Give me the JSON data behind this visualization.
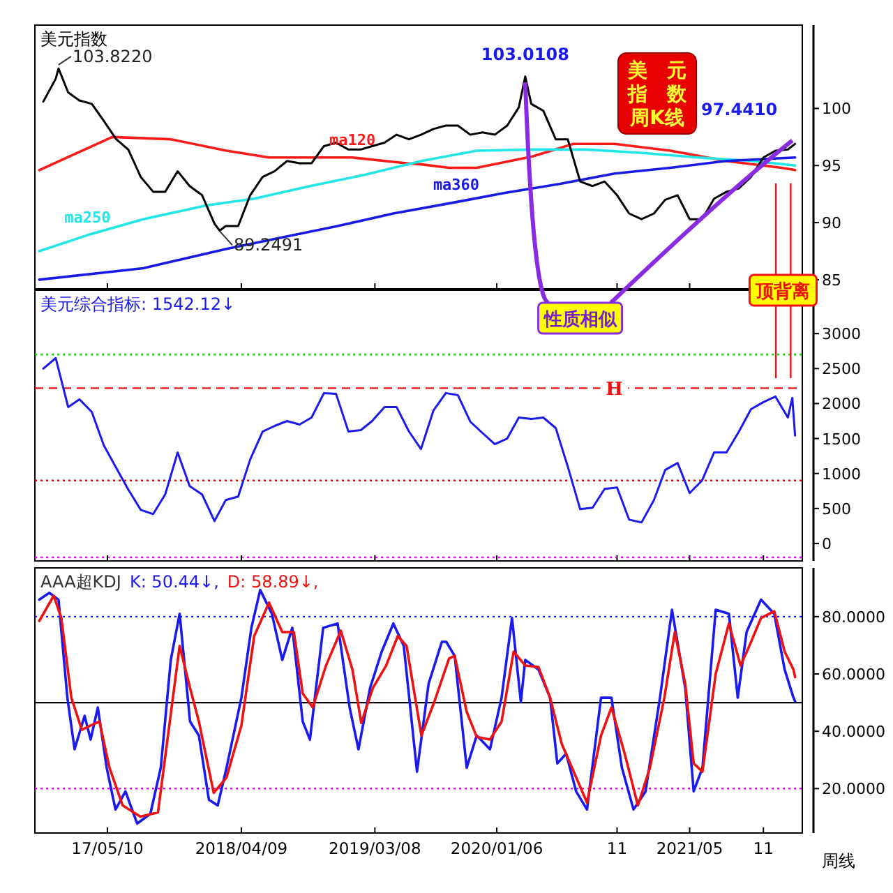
{
  "chart_data": [
    {
      "type": "line",
      "title": "美元指数",
      "xlim": [
        "2016-11-10",
        "2022-02-06"
      ],
      "ylim": [
        84.2,
        107.3
      ],
      "yticks": [
        85,
        90,
        95,
        100
      ],
      "tick_labels": "y",
      "legend": false,
      "marker": "none",
      "line_style": "solid",
      "series": [
        {
          "name": "ma120",
          "color": "#ff1a1a",
          "x": [
            "2016-11-21",
            "2017-05-22",
            "2017-10-15",
            "2018-03-03",
            "2018-06-17",
            "2019-01-11",
            "2019-05-26",
            "2019-07-02",
            "2019-09-09",
            "2019-11-17",
            "2020-04-04",
            "2020-07-15",
            "2020-10-26",
            "2021-03-14",
            "2021-07-31",
            "2021-12-16",
            "2022-01-19"
          ],
          "values": [
            94.6,
            97.5,
            97.3,
            96.3,
            95.7,
            95.7,
            95.2,
            95.1,
            94.8,
            94.8,
            95.8,
            96.9,
            96.9,
            96.3,
            95.4,
            94.8,
            94.6
          ]
        },
        {
          "name": "ma250",
          "color": "#22e5e5",
          "x": [
            "2016-11-21",
            "2017-03-21",
            "2017-08-07",
            "2018-01-11",
            "2018-05-11",
            "2018-09-27",
            "2019-02-13",
            "2019-07-02",
            "2019-11-17",
            "2020-04-04",
            "2020-08-18",
            "2021-01-04",
            "2021-05-22",
            "2021-10-08",
            "2022-01-19"
          ],
          "values": [
            87.5,
            88.9,
            90.3,
            91.5,
            92.1,
            93.2,
            94.2,
            95.4,
            96.3,
            96.4,
            96.4,
            96.1,
            95.7,
            95.4,
            95.0
          ]
        },
        {
          "name": "ma360",
          "color": "#1a1ae6",
          "x": [
            "2016-11-21",
            "2017-08-07",
            "2018-03-03",
            "2018-07-20",
            "2018-12-05",
            "2019-04-23",
            "2019-09-27",
            "2020-01-26",
            "2020-06-12",
            "2020-10-26",
            "2021-03-14",
            "2021-07-31",
            "2022-01-19"
          ],
          "values": [
            85.0,
            86.0,
            87.7,
            88.7,
            89.7,
            90.8,
            91.8,
            92.6,
            93.4,
            94.3,
            94.8,
            95.4,
            95.7
          ]
        },
        {
          "color": "#000000",
          "x": [
            "2016-12",
            "2017-01",
            "2017-01-08",
            "2017-02",
            "2017-03",
            "2017-04",
            "2017-05",
            "2017-06",
            "2017-07",
            "2017-08",
            "2017-09",
            "2017-10",
            "2017-11",
            "2017-12",
            "2018-01",
            "2018-02",
            "2018-02-14",
            "2018-03",
            "2018-04",
            "2018-05",
            "2018-06",
            "2018-07",
            "2018-08",
            "2018-09",
            "2018-10",
            "2018-11",
            "2018-12",
            "2019-01",
            "2019-02",
            "2019-03",
            "2019-04",
            "2019-05",
            "2019-06",
            "2019-07",
            "2019-08",
            "2019-09",
            "2019-10",
            "2019-11",
            "2019-12",
            "2020-01",
            "2020-02",
            "2020-03",
            "2020-03-17",
            "2020-04",
            "2020-05",
            "2020-06",
            "2020-07",
            "2020-08",
            "2020-09",
            "2020-10",
            "2020-11",
            "2020-12",
            "2021-01",
            "2021-02",
            "2021-03",
            "2021-04",
            "2021-05",
            "2021-06",
            "2021-07",
            "2021-08",
            "2021-09",
            "2021-10",
            "2021-11",
            "2021-12",
            "2022-01",
            "2022-01-19"
          ],
          "values": [
            100.6,
            102.6,
            103.5,
            101.4,
            100.7,
            100.4,
            98.9,
            97.3,
            96.4,
            94.0,
            92.7,
            92.7,
            94.5,
            93.2,
            92.4,
            89.9,
            89.3,
            89.7,
            89.7,
            92.4,
            94.0,
            94.5,
            95.4,
            95.2,
            95.2,
            96.7,
            97.0,
            96.4,
            96.4,
            96.7,
            97.0,
            97.7,
            97.3,
            97.7,
            98.2,
            98.5,
            98.5,
            97.7,
            97.9,
            97.7,
            98.5,
            100.1,
            102.8,
            100.4,
            99.8,
            97.3,
            97.3,
            93.6,
            93.2,
            93.6,
            92.4,
            90.8,
            90.3,
            90.8,
            92.0,
            92.4,
            90.3,
            90.3,
            92.1,
            92.7,
            93.0,
            94.0,
            95.7,
            96.3,
            96.4,
            96.9
          ]
        }
      ],
      "annotations": [
        {
          "text": "103.8220",
          "x": "2017-01-08",
          "y": 103.822
        },
        {
          "text": "89.2491",
          "x": "2018-02-14",
          "y": 89.2491
        },
        {
          "text": "103.0108",
          "x": "2020-03-17",
          "y": 103.0108
        },
        {
          "text": "97.4410",
          "x": "2022-01-19",
          "y": 97.441
        },
        "美元指数周K线",
        {
          "text": "性质相似",
          "x": "2020-03-17",
          "y": 103.0108
        },
        "顶背离"
      ],
      "ref_lines": [
        {
          "axis": "x",
          "value": "2021-12-02",
          "color": "#ee1111",
          "line_style": "solid"
        },
        {
          "axis": "x",
          "value": "2022-01-08",
          "color": "#ee1111",
          "line_style": "solid"
        }
      ]
    },
    {
      "type": "line",
      "title": "美元综合指标: 1542.12↓",
      "xlim": [
        "2016-11-10",
        "2022-02-06"
      ],
      "ylim": [
        -250,
        3620
      ],
      "yticks": [
        0,
        500,
        1000,
        1500,
        2000,
        2500,
        3000
      ],
      "tick_labels": "y",
      "legend": false,
      "marker": "none",
      "line_style": "solid",
      "series": [
        {
          "color": "#1a1aee",
          "x": [
            "2016-12",
            "2017-01",
            "2017-02",
            "2017-03",
            "2017-04",
            "2017-05",
            "2017-06",
            "2017-07",
            "2017-08",
            "2017-09",
            "2017-10",
            "2017-11",
            "2017-12",
            "2018-01",
            "2018-02",
            "2018-03",
            "2018-04",
            "2018-05",
            "2018-06",
            "2018-07",
            "2018-08",
            "2018-09",
            "2018-10",
            "2018-11",
            "2018-12",
            "2019-01",
            "2019-02",
            "2019-03",
            "2019-04",
            "2019-05",
            "2019-06",
            "2019-07",
            "2019-08",
            "2019-09",
            "2019-10",
            "2019-11",
            "2019-12",
            "2020-01",
            "2020-02",
            "2020-03",
            "2020-04",
            "2020-05",
            "2020-06",
            "2020-07",
            "2020-08",
            "2020-09",
            "2020-10",
            "2020-11",
            "2020-12",
            "2021-01",
            "2021-02",
            "2021-03",
            "2021-04",
            "2021-05",
            "2021-06",
            "2021-07",
            "2021-08",
            "2021-09",
            "2021-10",
            "2021-11",
            "2021-12",
            "2022-01",
            "2022-01-12",
            "2022-01-19"
          ],
          "values": [
            2500,
            2650,
            1950,
            2060,
            1880,
            1400,
            1080,
            770,
            480,
            420,
            700,
            1300,
            820,
            700,
            320,
            620,
            670,
            1200,
            1600,
            1680,
            1750,
            1700,
            1800,
            2150,
            2140,
            1600,
            1620,
            1750,
            1950,
            1950,
            1600,
            1350,
            1900,
            2150,
            2120,
            1740,
            1580,
            1420,
            1500,
            1800,
            1780,
            1800,
            1650,
            1100,
            490,
            510,
            780,
            800,
            340,
            300,
            620,
            1050,
            1150,
            720,
            900,
            1300,
            1300,
            1600,
            1920,
            2020,
            2100,
            1800,
            2080,
            1542.12
          ]
        }
      ],
      "ref_lines": [
        {
          "axis": "y",
          "value": 2700,
          "color": "#22cc22",
          "line_style": "dotted"
        },
        {
          "axis": "y",
          "value": 2220,
          "color": "#ee1111",
          "line_style": "dashed",
          "label": "H"
        },
        {
          "axis": "y",
          "value": 900,
          "color": "#cc1111",
          "line_style": "dotted"
        },
        {
          "axis": "y",
          "value": -200,
          "color": "#ee00ee",
          "line_style": "dotted"
        }
      ]
    },
    {
      "type": "line",
      "title": "AAA超KDJ",
      "xlim": [
        "2016-11-10",
        "2022-02-06"
      ],
      "ylim": [
        4.5,
        97
      ],
      "yticks": [
        {
          "value": 20,
          "label": "20.0000"
        },
        {
          "value": 40,
          "label": "40.0000"
        },
        {
          "value": 60,
          "label": "60.0000"
        },
        {
          "value": 80,
          "label": "80.0000"
        }
      ],
      "xticks": [
        {
          "value": "2017-05-10",
          "label": "17/05/10"
        },
        {
          "value": "2018-04-09",
          "label": "2018/04/09"
        },
        {
          "value": "2019-03-08",
          "label": "2019/03/08"
        },
        {
          "value": "2020-01-06",
          "label": "2020/01/06"
        },
        {
          "value": "2020-11",
          "label": "11"
        },
        {
          "value": "2021-05",
          "label": "2021/05"
        },
        {
          "value": "2021-11",
          "label": "11"
        }
      ],
      "legend": "top left",
      "marker": "none",
      "line_style": "solid",
      "series": [
        {
          "name": "K: 50.44↓,",
          "color": "#1a1aee",
          "x": [
            "2016-11-21",
            "2016-12-16",
            "2017-01-08",
            "2017-01-30",
            "2017-02-17",
            "2017-03-14",
            "2017-03-29",
            "2017-04-16",
            "2017-05-08",
            "2017-05-30",
            "2017-06-24",
            "2017-07-23",
            "2017-08-25",
            "2017-09-20",
            "2017-10-15",
            "2017-11-06",
            "2017-12-02",
            "2017-12-24",
            "2018-01-18",
            "2018-02-09",
            "2018-03-03",
            "2018-04-09",
            "2018-05-04",
            "2018-05-26",
            "2018-06-24",
            "2018-07-20",
            "2018-08-14",
            "2018-09-09",
            "2018-09-27",
            "2018-10-30",
            "2018-12-05",
            "2019-01-04",
            "2019-01-26",
            "2019-02-24",
            "2019-03-25",
            "2019-04-23",
            "2019-05-19",
            "2019-06-21",
            "2019-07-20",
            "2019-08-22",
            "2019-09-02",
            "2019-09-23",
            "2019-10-23",
            "2019-11-17",
            "2019-12-20",
            "2020-01-18",
            "2020-02-13",
            "2020-03-06",
            "2020-03-17",
            "2020-04-19",
            "2020-05-18",
            "2020-06-05",
            "2020-06-27",
            "2020-07-22",
            "2020-08-18",
            "2020-09-22",
            "2020-10-18",
            "2020-11-13",
            "2020-12-12",
            "2021-01-11",
            "2021-02-16",
            "2021-03-18",
            "2021-04-20",
            "2021-05-11",
            "2021-06-02",
            "2021-07-05",
            "2021-08-07",
            "2021-08-29",
            "2021-09-20",
            "2021-10-26",
            "2021-11-28",
            "2021-12-24",
            "2022-01-15",
            "2022-01-19"
          ],
          "values": [
            85.9,
            88.3,
            85.9,
            51.7,
            33.7,
            45.4,
            37.1,
            48.3,
            27.3,
            12.7,
            19.0,
            7.8,
            11.2,
            27.3,
            64.9,
            81.0,
            43.4,
            38.5,
            16.1,
            14.1,
            27.3,
            51.7,
            76.1,
            89.3,
            81.0,
            64.9,
            76.1,
            43.4,
            37.1,
            76.1,
            77.6,
            48.3,
            33.7,
            55.1,
            67.8,
            77.6,
            69.8,
            25.9,
            56.6,
            71.2,
            71.2,
            66.3,
            27.3,
            38.5,
            33.7,
            51.7,
            79.5,
            50.2,
            64.9,
            61.5,
            51.7,
            28.8,
            32.2,
            19.0,
            12.7,
            51.7,
            51.7,
            27.3,
            12.7,
            19.0,
            51.7,
            82.4,
            55.1,
            19.0,
            27.3,
            82.4,
            81.0,
            51.7,
            74.6,
            85.9,
            81.0,
            61.5,
            51.7,
            50.44
          ]
        },
        {
          "name": "D: 58.89↓,",
          "color": "#ee1111",
          "x": [
            "2016-11-21",
            "2016-12-27",
            "2017-01-15",
            "2017-02-09",
            "2017-03-07",
            "2017-03-29",
            "2017-04-20",
            "2017-05-15",
            "2017-06-17",
            "2017-07-31",
            "2017-09-13",
            "2017-10-08",
            "2017-11-06",
            "2017-12-02",
            "2017-12-24",
            "2018-01-30",
            "2018-03-03",
            "2018-04-09",
            "2018-05-11",
            "2018-06-17",
            "2018-07-20",
            "2018-08-18",
            "2018-09-09",
            "2018-10-04",
            "2018-11-06",
            "2018-12-13",
            "2019-01-11",
            "2019-02-02",
            "2019-03-03",
            "2019-04-05",
            "2019-05-04",
            "2019-05-26",
            "2019-07-02",
            "2019-08-03",
            "2019-09-09",
            "2019-09-23",
            "2019-10-23",
            "2019-11-17",
            "2019-12-20",
            "2020-01-18",
            "2020-02-17",
            "2020-03-17",
            "2020-04-19",
            "2020-05-18",
            "2020-06-16",
            "2020-07-22",
            "2020-08-18",
            "2020-09-22",
            "2020-10-18",
            "2020-11-20",
            "2020-12-23",
            "2021-01-22",
            "2021-02-27",
            "2021-03-25",
            "2021-04-20",
            "2021-05-11",
            "2021-06-02",
            "2021-07-05",
            "2021-08-07",
            "2021-09-05",
            "2021-09-27",
            "2021-10-26",
            "2021-11-28",
            "2021-12-24",
            "2022-01-15",
            "2022-01-19"
          ],
          "values": [
            78.5,
            87.3,
            79.5,
            51.7,
            40.5,
            42.0,
            43.4,
            27.3,
            14.1,
            10.2,
            11.7,
            38.5,
            69.8,
            55.1,
            43.4,
            18.5,
            23.9,
            42.0,
            73.2,
            84.9,
            74.6,
            74.6,
            53.2,
            48.3,
            62.9,
            75.1,
            61.5,
            42.9,
            55.1,
            62.9,
            73.2,
            69.8,
            38.5,
            50.2,
            65.4,
            66.3,
            46.8,
            38.0,
            37.1,
            43.4,
            67.8,
            62.9,
            62.4,
            51.7,
            35.6,
            23.9,
            15.1,
            38.5,
            48.3,
            32.2,
            14.1,
            27.3,
            51.7,
            74.6,
            56.6,
            28.8,
            25.9,
            60.0,
            77.6,
            62.9,
            69.8,
            79.5,
            81.9,
            67.8,
            61.5,
            58.89
          ]
        }
      ],
      "ref_lines": [
        {
          "axis": "y",
          "value": 80,
          "color": "#2222ee",
          "line_style": "dotted"
        },
        {
          "axis": "y",
          "value": 50,
          "color": "#000000",
          "line_style": "solid"
        },
        {
          "axis": "y",
          "value": 20,
          "color": "#cc22cc",
          "line_style": "dotted"
        }
      ],
      "annotations": [
        "周线"
      ]
    }
  ]
}
